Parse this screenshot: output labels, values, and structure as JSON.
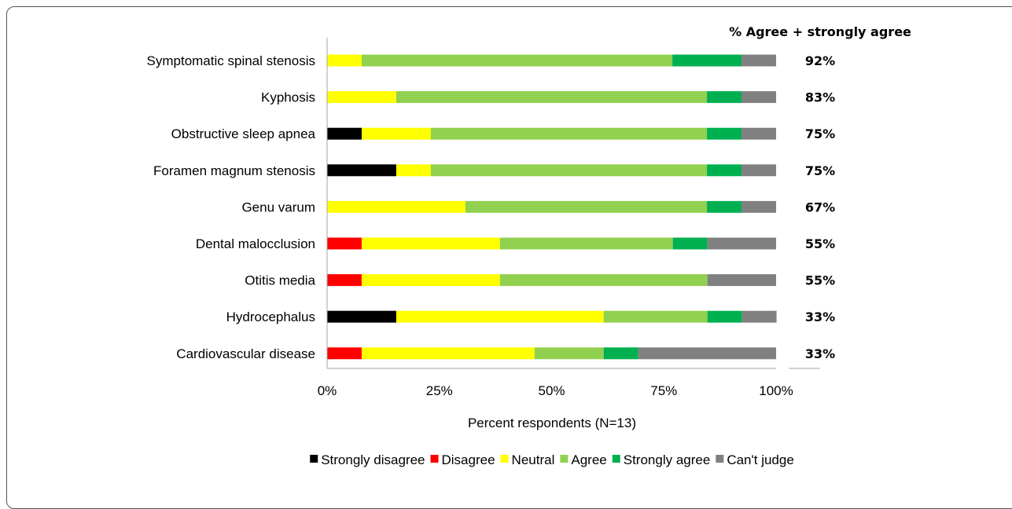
{
  "chart_data": {
    "type": "bar",
    "orientation": "horizontal",
    "stacked": true,
    "title": "",
    "xlabel": "Percent respondents (N=13)",
    "ylabel": "",
    "xlim": [
      0,
      100
    ],
    "x_ticks": [
      "0%",
      "25%",
      "50%",
      "75%",
      "100%"
    ],
    "categories": [
      "Symptomatic spinal stenosis",
      "Kyphosis",
      "Obstructive sleep apnea",
      "Foramen magnum stenosis",
      "Genu varum",
      "Dental malocclusion",
      "Otitis media",
      "Hydrocephalus",
      "Cardiovascular disease"
    ],
    "series": [
      {
        "name": "Strongly disagree",
        "color": "#000000",
        "values": [
          0,
          0,
          7.7,
          15.4,
          0,
          0,
          0,
          15.4,
          0
        ]
      },
      {
        "name": "Disagree",
        "color": "#ff0000",
        "values": [
          0,
          0,
          0,
          0,
          0,
          7.7,
          7.7,
          0,
          7.7
        ]
      },
      {
        "name": "Neutral",
        "color": "#ffff00",
        "values": [
          7.7,
          15.4,
          15.4,
          7.7,
          30.8,
          30.8,
          30.8,
          46.2,
          38.5
        ]
      },
      {
        "name": "Agree",
        "color": "#92d050",
        "values": [
          69.2,
          69.2,
          61.5,
          61.5,
          53.8,
          38.5,
          46.2,
          23.1,
          15.4
        ]
      },
      {
        "name": "Strongly agree",
        "color": "#00b050",
        "values": [
          15.4,
          7.7,
          7.7,
          7.7,
          7.7,
          7.7,
          0,
          7.7,
          7.7
        ]
      },
      {
        "name": "Can't judge",
        "color": "#808080",
        "values": [
          7.7,
          7.7,
          7.7,
          7.7,
          7.7,
          15.3,
          15.3,
          7.7,
          30.7
        ]
      }
    ],
    "agree_header": "% Agree + strongly agree",
    "agree_labels": [
      "92%",
      "83%",
      "75%",
      "75%",
      "67%",
      "55%",
      "55%",
      "33%",
      "33%"
    ],
    "legend": {
      "position": "bottom"
    },
    "grid": false
  }
}
